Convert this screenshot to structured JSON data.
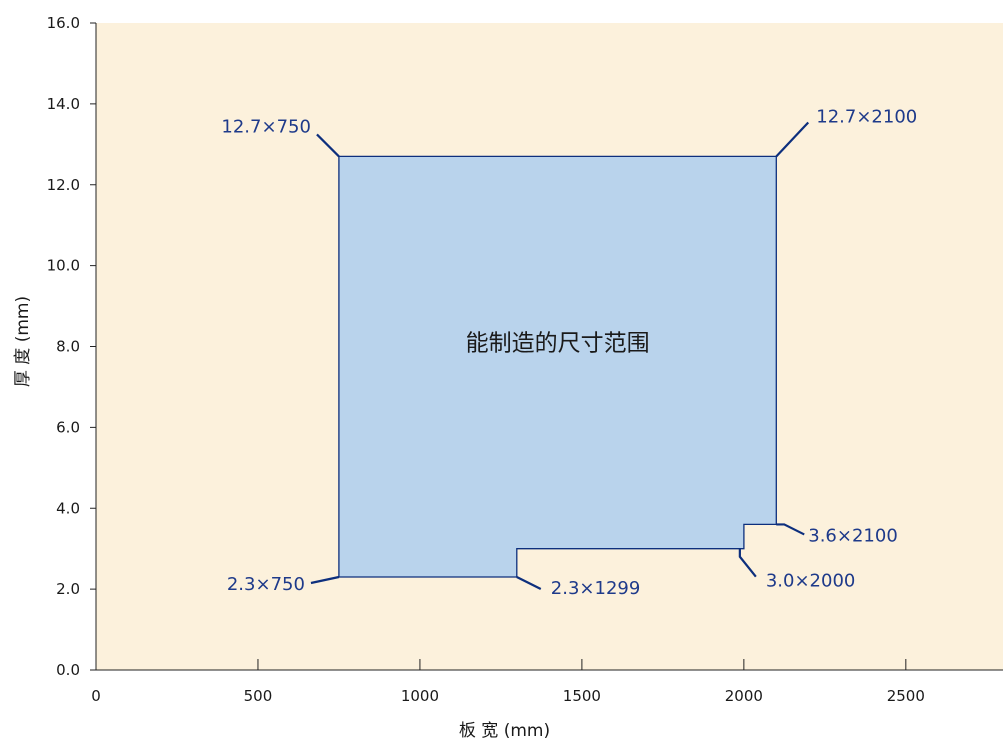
{
  "chart_data": {
    "type": "area",
    "title": "",
    "xlabel": "板 宽 (mm)",
    "ylabel": "厚 度 (mm)",
    "xlim": [
      0,
      2800
    ],
    "ylim": [
      0,
      16
    ],
    "x_ticks": [
      0,
      500,
      1000,
      1500,
      2000,
      2500
    ],
    "x_tick_labels": [
      "0",
      "500",
      "1000",
      "1500",
      "2000",
      "2500"
    ],
    "y_ticks": [
      0,
      2,
      4,
      6,
      8,
      10,
      12,
      14,
      16
    ],
    "y_tick_labels": [
      "0.0",
      "2.0",
      "4.0",
      "6.0",
      "8.0",
      "10.0",
      "12.0",
      "14.0",
      "16.0"
    ],
    "grid": false,
    "region": {
      "label": "能制造的尺寸范围",
      "points": [
        [
          750,
          2.3
        ],
        [
          1299,
          2.3
        ],
        [
          1299,
          3.0
        ],
        [
          2000,
          3.0
        ],
        [
          2000,
          3.6
        ],
        [
          2100,
          3.6
        ],
        [
          2100,
          12.7
        ],
        [
          750,
          12.7
        ]
      ]
    },
    "annotations": [
      {
        "text": "12.7×750",
        "x": 750,
        "y": 12.7
      },
      {
        "text": "12.7×2100",
        "x": 2100,
        "y": 12.7
      },
      {
        "text": "3.6×2100",
        "x": 2100,
        "y": 3.6
      },
      {
        "text": "3.0×2000",
        "x": 2000,
        "y": 3.0
      },
      {
        "text": "2.3×1299",
        "x": 1299,
        "y": 2.3
      },
      {
        "text": "2.3×750",
        "x": 750,
        "y": 2.3
      }
    ]
  },
  "colors": {
    "page_background": "#ffffff",
    "plot_background": "#fcf1dc",
    "region_fill": "#b9d3ec",
    "region_stroke": "#0d2f7d",
    "annotation_text": "#1e3a8a",
    "axis": "#222222"
  }
}
